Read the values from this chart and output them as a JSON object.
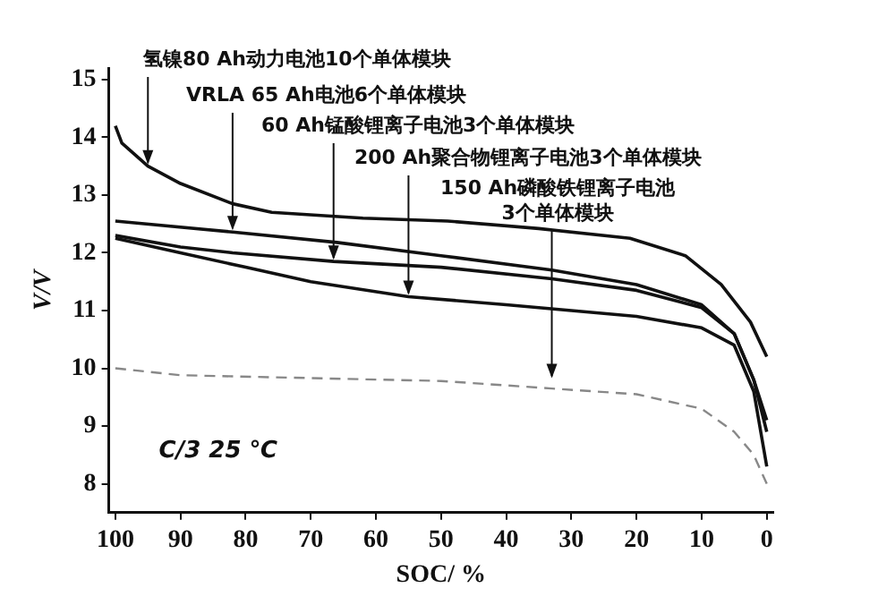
{
  "chart_data": {
    "type": "line",
    "xlabel": "SOC/ %",
    "ylabel": "V/V",
    "xlim": [
      101,
      -1
    ],
    "xticks": [
      100,
      90,
      80,
      70,
      60,
      50,
      40,
      30,
      20,
      10,
      0
    ],
    "ylim": [
      7.5,
      15.2
    ],
    "yticks": [
      8,
      9,
      10,
      11,
      12,
      13,
      14,
      15
    ],
    "grid": false,
    "legend": false,
    "marker": "none",
    "series": [
      {
        "color": "#111111",
        "x": [
          100,
          99,
          95,
          90,
          82,
          76,
          62,
          49,
          35,
          21,
          12.5,
          7,
          2.5,
          0
        ],
        "values": [
          14.2,
          13.9,
          13.5,
          13.2,
          12.85,
          12.7,
          12.6,
          12.55,
          12.42,
          12.25,
          11.95,
          11.45,
          10.8,
          10.2
        ]
      },
      {
        "color": "#111111",
        "x": [
          100,
          82,
          66,
          50,
          33,
          20,
          10,
          5,
          2,
          0
        ],
        "values": [
          12.55,
          12.36,
          12.18,
          11.95,
          11.7,
          11.45,
          11.1,
          10.6,
          9.8,
          9.1
        ]
      },
      {
        "color": "#111111",
        "x": [
          100,
          90,
          82,
          66.5,
          50,
          33,
          20,
          10,
          5,
          2,
          0
        ],
        "values": [
          12.3,
          12.1,
          12.0,
          11.85,
          11.75,
          11.55,
          11.35,
          11.05,
          10.6,
          9.8,
          8.9
        ]
      },
      {
        "color": "#111111",
        "x": [
          100,
          90,
          80,
          70,
          55,
          40,
          30,
          20,
          10,
          5,
          2,
          0
        ],
        "values": [
          12.25,
          12.0,
          11.75,
          11.5,
          11.24,
          11.1,
          11.0,
          10.9,
          10.7,
          10.4,
          9.6,
          8.3
        ]
      },
      {
        "color": "#888888",
        "line_style": "dashed",
        "x": [
          100,
          90,
          70,
          50,
          33,
          20,
          10,
          5,
          2,
          0
        ],
        "values": [
          10.0,
          9.88,
          9.83,
          9.78,
          9.65,
          9.55,
          9.3,
          8.9,
          8.5,
          8.0
        ]
      }
    ],
    "annotations": [
      {
        "text": "氢镍80 Ah动力电池10个单体模块",
        "x": 95,
        "y": 13.5
      },
      {
        "text": "VRLA 65 Ah电池6个单体模块",
        "x": 82,
        "y": 12.36
      },
      {
        "text": "60 Ah锰酸锂离子电池3个单体模块",
        "x": 66.5,
        "y": 11.85
      },
      {
        "text": "200 Ah聚合物锂离子电池3个单体模块",
        "x": 55,
        "y": 11.24
      },
      {
        "text": "150 Ah磷酸铁锂离子电池\n3个单体模块",
        "x": 33,
        "y": 9.8
      },
      "C/3 25 ℃"
    ]
  }
}
